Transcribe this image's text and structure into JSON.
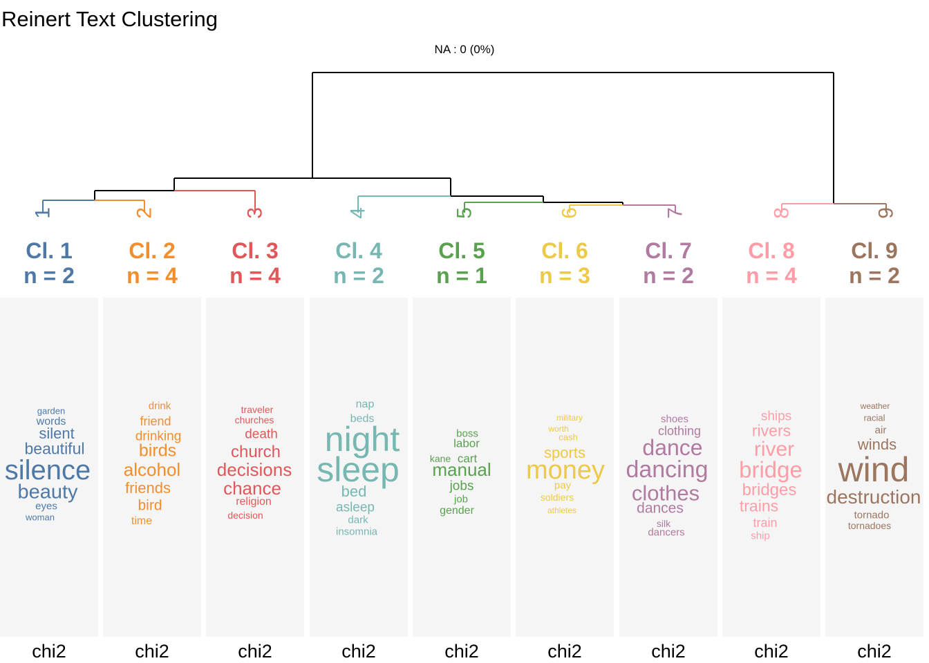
{
  "title": "Reinert Text Clustering",
  "na_label": "NA : 0 (0%)",
  "classes": [
    {
      "cl_label": "Cl. 1",
      "n_label": "n = 2",
      "color": "#4e79a7",
      "chi_label": "chi2",
      "leaf_label": "1",
      "words": [
        {
          "text": "garden",
          "size": 13
        },
        {
          "text": "words",
          "size": 16
        },
        {
          "text": "silent",
          "size": 22
        },
        {
          "text": "beautiful",
          "size": 23
        },
        {
          "text": "silence",
          "size": 40
        },
        {
          "text": "beauty",
          "size": 29
        },
        {
          "text": "eyes",
          "size": 15
        },
        {
          "text": "woman",
          "size": 13
        }
      ]
    },
    {
      "cl_label": "Cl. 2",
      "n_label": "n = 4",
      "color": "#f28e2b",
      "chi_label": "chi2",
      "leaf_label": "2",
      "words": [
        {
          "text": "drink",
          "size": 15
        },
        {
          "text": "friend",
          "size": 18
        },
        {
          "text": "drinking",
          "size": 19
        },
        {
          "text": "birds",
          "size": 25
        },
        {
          "text": "alcohol",
          "size": 26
        },
        {
          "text": "friends",
          "size": 22
        },
        {
          "text": "bird",
          "size": 21
        },
        {
          "text": "time",
          "size": 16
        }
      ]
    },
    {
      "cl_label": "Cl. 3",
      "n_label": "n = 4",
      "color": "#e15759",
      "chi_label": "chi2",
      "leaf_label": "3",
      "words": [
        {
          "text": "traveler",
          "size": 14
        },
        {
          "text": "churches",
          "size": 14
        },
        {
          "text": "death",
          "size": 19
        },
        {
          "text": "church",
          "size": 24
        },
        {
          "text": "decisions",
          "size": 26
        },
        {
          "text": "chance",
          "size": 26
        },
        {
          "text": "religion",
          "size": 16
        },
        {
          "text": "decision",
          "size": 14
        }
      ]
    },
    {
      "cl_label": "Cl. 4",
      "n_label": "n = 2",
      "color": "#76b7b2",
      "chi_label": "chi2",
      "leaf_label": "4",
      "words": [
        {
          "text": "nap",
          "size": 16
        },
        {
          "text": "beds",
          "size": 16
        },
        {
          "text": "night",
          "size": 50
        },
        {
          "text": "sleep",
          "size": 50
        },
        {
          "text": "bed",
          "size": 22
        },
        {
          "text": "asleep",
          "size": 19
        },
        {
          "text": "dark",
          "size": 15
        },
        {
          "text": "insomnia",
          "size": 15
        }
      ]
    },
    {
      "cl_label": "Cl. 5",
      "n_label": "n = 1",
      "color": "#59a14f",
      "chi_label": "chi2",
      "leaf_label": "5",
      "words": [
        {
          "text": "boss",
          "size": 15
        },
        {
          "text": "labor",
          "size": 17
        },
        {
          "text": "kane",
          "size": 14
        },
        {
          "text": "cart",
          "size": 17
        },
        {
          "text": "manual",
          "size": 26
        },
        {
          "text": "jobs",
          "size": 19
        },
        {
          "text": "job",
          "size": 15
        },
        {
          "text": "gender",
          "size": 16
        }
      ]
    },
    {
      "cl_label": "Cl. 6",
      "n_label": "n = 3",
      "color": "#edc948",
      "chi_label": "chi2",
      "leaf_label": "6",
      "words": [
        {
          "text": "military",
          "size": 12
        },
        {
          "text": "worth",
          "size": 12
        },
        {
          "text": "cash",
          "size": 13
        },
        {
          "text": "sports",
          "size": 22
        },
        {
          "text": "money",
          "size": 38
        },
        {
          "text": "pay",
          "size": 15
        },
        {
          "text": "soldiers",
          "size": 14
        },
        {
          "text": "athletes",
          "size": 12
        }
      ]
    },
    {
      "cl_label": "Cl. 7",
      "n_label": "n = 2",
      "color": "#b07aa1",
      "chi_label": "chi2",
      "leaf_label": "7",
      "words": [
        {
          "text": "shoes",
          "size": 15
        },
        {
          "text": "clothing",
          "size": 18
        },
        {
          "text": "dance",
          "size": 32
        },
        {
          "text": "dancing",
          "size": 34
        },
        {
          "text": "clothes",
          "size": 31
        },
        {
          "text": "dances",
          "size": 21
        },
        {
          "text": "silk",
          "size": 14
        },
        {
          "text": "dancers",
          "size": 15
        }
      ]
    },
    {
      "cl_label": "Cl. 8",
      "n_label": "n = 4",
      "color": "#ff9da7",
      "chi_label": "chi2",
      "leaf_label": "8",
      "words": [
        {
          "text": "ships",
          "size": 19
        },
        {
          "text": "rivers",
          "size": 23
        },
        {
          "text": "river",
          "size": 30
        },
        {
          "text": "bridge",
          "size": 33
        },
        {
          "text": "bridges",
          "size": 24
        },
        {
          "text": "trains",
          "size": 23
        },
        {
          "text": "train",
          "size": 18
        },
        {
          "text": "ship",
          "size": 15
        }
      ]
    },
    {
      "cl_label": "Cl. 9",
      "n_label": "n = 2",
      "color": "#9c755f",
      "chi_label": "chi2",
      "leaf_label": "9",
      "words": [
        {
          "text": "weather",
          "size": 12
        },
        {
          "text": "racial",
          "size": 13
        },
        {
          "text": "air",
          "size": 15
        },
        {
          "text": "winds",
          "size": 22
        },
        {
          "text": "wind",
          "size": 50
        },
        {
          "text": "destruction",
          "size": 28
        },
        {
          "text": "tornado",
          "size": 15
        },
        {
          "text": "tornadoes",
          "size": 14
        }
      ]
    }
  ]
}
